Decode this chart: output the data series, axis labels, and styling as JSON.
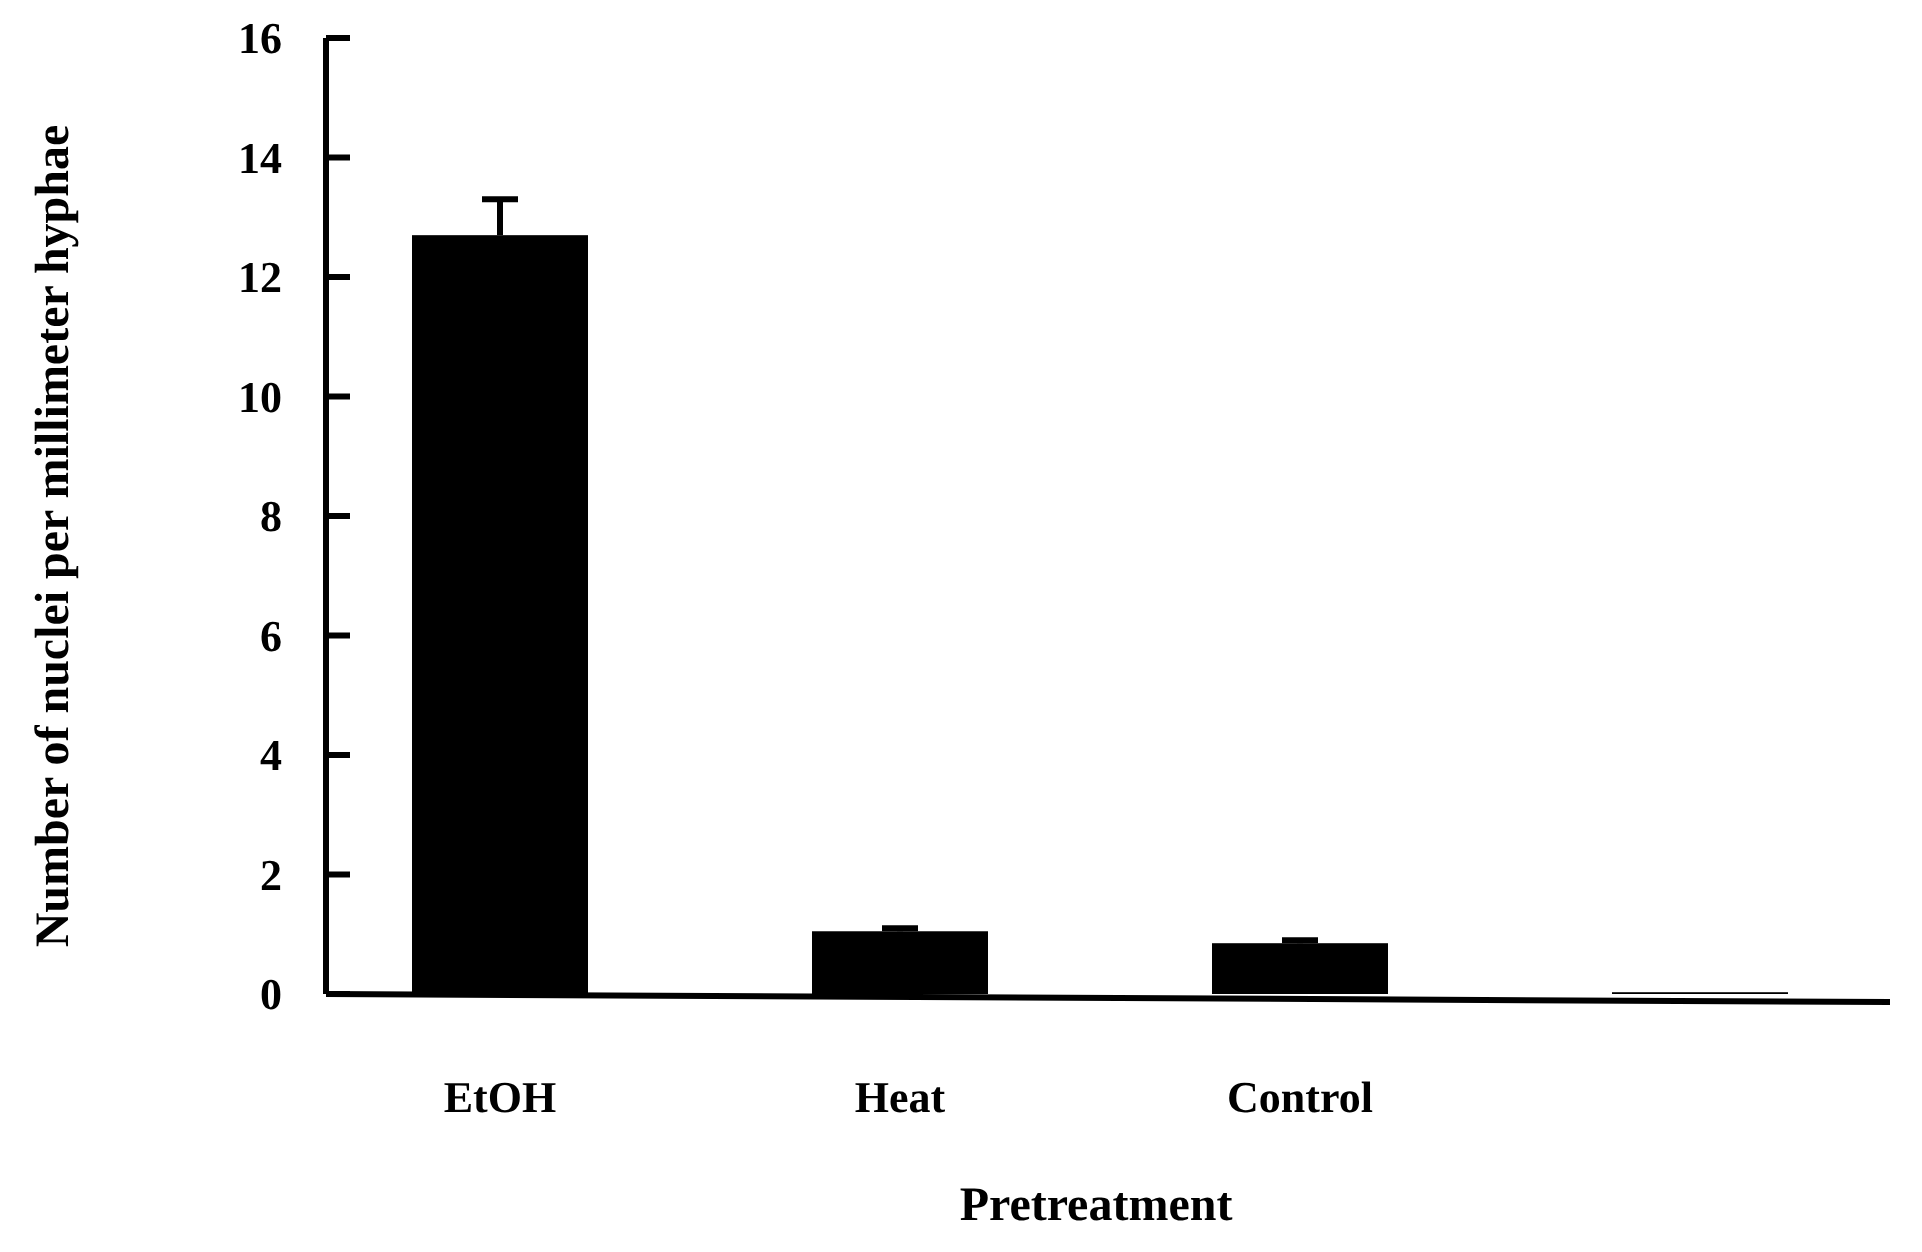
{
  "chart_data": {
    "type": "bar",
    "xlabel": "Pretreatment",
    "ylabel": "Number of nuclei per millimeter hyphae",
    "categories": [
      "EtOH",
      "Heat",
      "Control",
      null
    ],
    "values": [
      12.7,
      1.05,
      0.85,
      0.03
    ],
    "errors": [
      0.6,
      0.05,
      0.05,
      null
    ],
    "color": "#000000",
    "ylim": [
      0,
      16
    ],
    "yticks": [
      0,
      2,
      4,
      6,
      8,
      10,
      12,
      14,
      16
    ],
    "grid": false
  }
}
